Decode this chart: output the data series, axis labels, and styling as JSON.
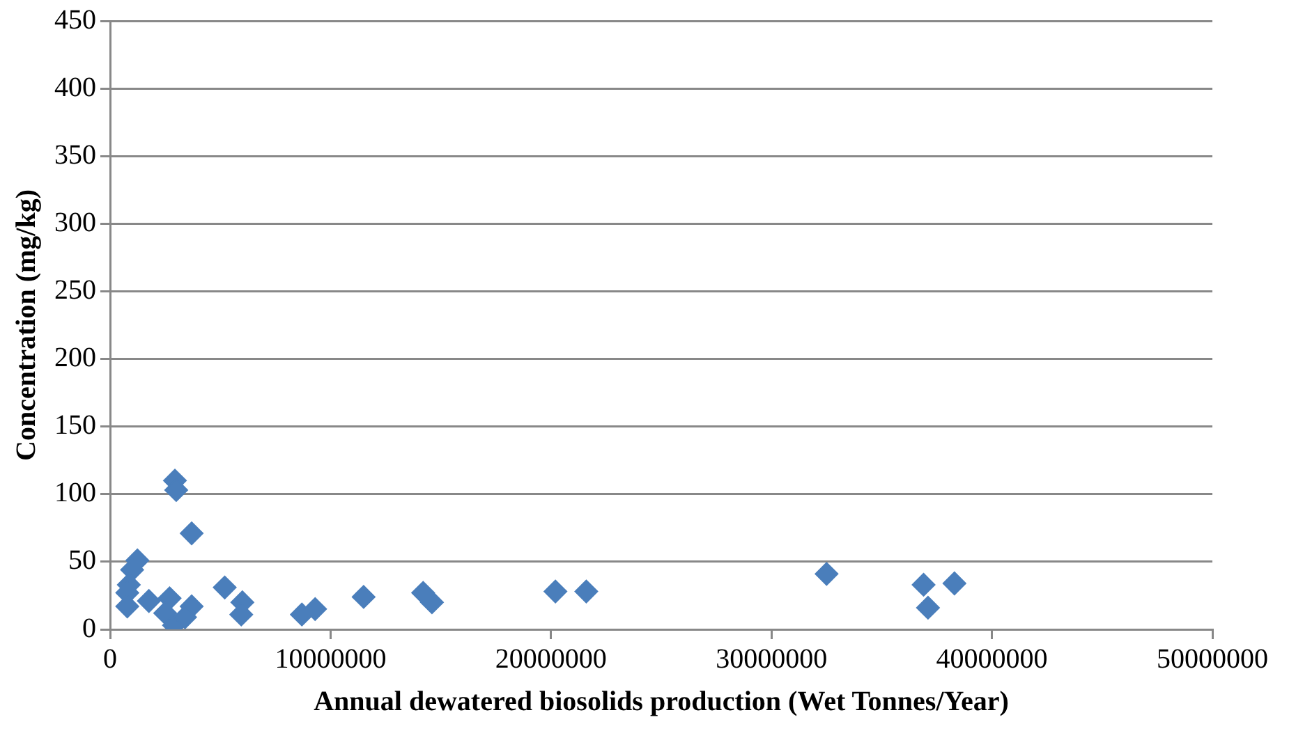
{
  "chart_data": {
    "type": "scatter",
    "xlabel": "Annual dewatered biosolids production (Wet Tonnes/Year)",
    "ylabel": "Concentration (mg/kg)",
    "x": [
      2940000,
      3000000,
      3700000,
      1240000,
      1000000,
      850000,
      780000,
      780000,
      1760000,
      2700000,
      2500000,
      2900000,
      3700000,
      3400000,
      5200000,
      6000000,
      5950000,
      8700000,
      9300000,
      11500000,
      14200000,
      14600000,
      20200000,
      21600000,
      32500000,
      36900000,
      38300000,
      37100000
    ],
    "values": [
      110,
      103,
      71,
      51,
      44,
      33,
      27,
      17,
      21,
      23,
      12,
      3,
      17,
      9,
      31,
      20,
      11,
      11,
      15,
      24,
      27,
      20,
      28,
      28,
      41,
      33,
      34,
      16
    ],
    "color": "#4a7ebb",
    "marker": "diamond",
    "xlim": [
      0,
      50000000
    ],
    "xticks": [
      0,
      10000000,
      20000000,
      30000000,
      40000000,
      50000000
    ],
    "ylim": [
      0,
      450
    ],
    "yticks": [
      0,
      50,
      100,
      150,
      200,
      250,
      300,
      350,
      400,
      450
    ],
    "grid": "y",
    "legend": false
  }
}
